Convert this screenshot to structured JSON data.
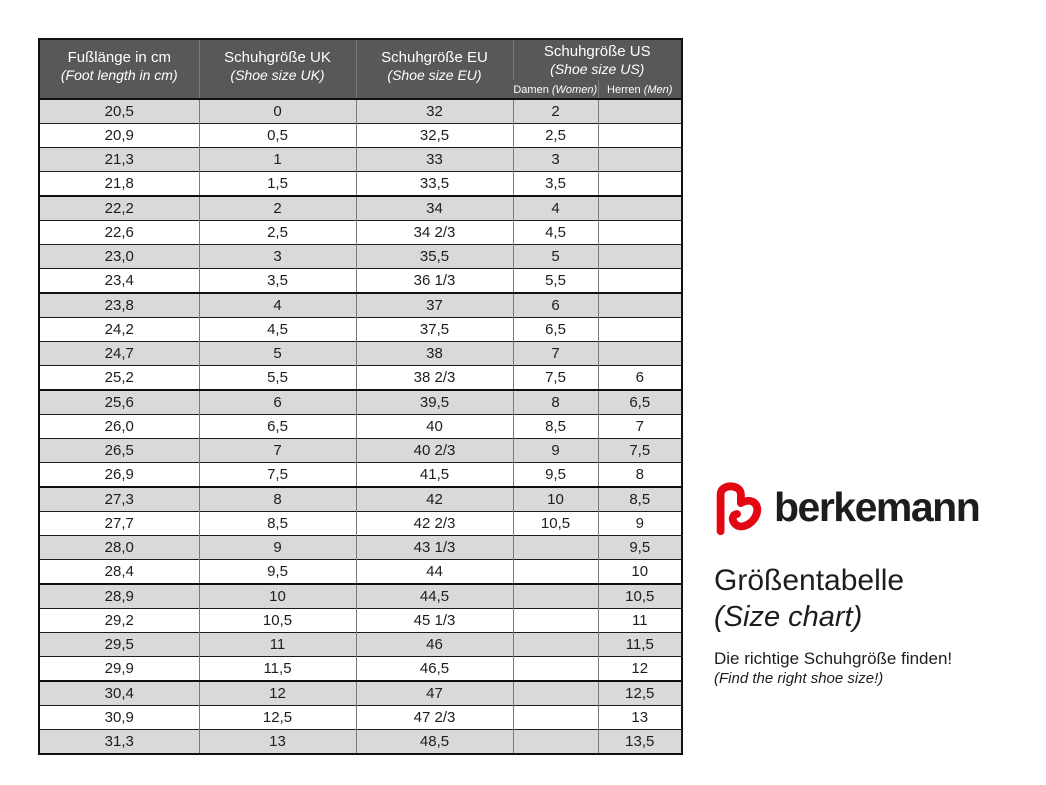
{
  "brand": {
    "logo_icon": "berkemann-b-mark",
    "logo_color": "#e30613",
    "name": "berkemann",
    "title_de": "Größentabelle",
    "title_en": "(Size chart)",
    "tagline_de": "Die richtige Schuhgröße finden!",
    "tagline_en": "(Find the right shoe size!)"
  },
  "colors": {
    "header_bg": "#58585a",
    "shaded_row_bg": "#d9d9d9",
    "border": "#121212",
    "logo_red": "#e30613",
    "text": "#1d1d1b"
  },
  "table": {
    "headers": [
      {
        "de": "Fußlänge in cm",
        "en": "(Foot length in cm)"
      },
      {
        "de": "Schuhgröße UK",
        "en": "(Shoe size UK)"
      },
      {
        "de": "Schuhgröße EU",
        "en": "(Shoe size EU)"
      },
      {
        "de": "Schuhgröße US",
        "en": "(Shoe size US)"
      }
    ],
    "us_subheaders": [
      {
        "de": "Damen",
        "en": "(Women)"
      },
      {
        "de": "Herren",
        "en": "(Men)"
      }
    ]
  },
  "chart_data": {
    "type": "table",
    "title": "Größentabelle (Size chart)",
    "columns": [
      "Fußlänge in cm (Foot length in cm)",
      "Schuhgröße UK (Shoe size UK)",
      "Schuhgröße EU (Shoe size EU)",
      "Schuhgröße US Damen (Women)",
      "Schuhgröße US Herren (Men)"
    ],
    "rows": [
      [
        "20,5",
        "0",
        "32",
        "2",
        ""
      ],
      [
        "20,9",
        "0,5",
        "32,5",
        "2,5",
        ""
      ],
      [
        "21,3",
        "1",
        "33",
        "3",
        ""
      ],
      [
        "21,8",
        "1,5",
        "33,5",
        "3,5",
        ""
      ],
      [
        "22,2",
        "2",
        "34",
        "4",
        ""
      ],
      [
        "22,6",
        "2,5",
        "34 2/3",
        "4,5",
        ""
      ],
      [
        "23,0",
        "3",
        "35,5",
        "5",
        ""
      ],
      [
        "23,4",
        "3,5",
        "36 1/3",
        "5,5",
        ""
      ],
      [
        "23,8",
        "4",
        "37",
        "6",
        ""
      ],
      [
        "24,2",
        "4,5",
        "37,5",
        "6,5",
        ""
      ],
      [
        "24,7",
        "5",
        "38",
        "7",
        ""
      ],
      [
        "25,2",
        "5,5",
        "38 2/3",
        "7,5",
        "6"
      ],
      [
        "25,6",
        "6",
        "39,5",
        "8",
        "6,5"
      ],
      [
        "26,0",
        "6,5",
        "40",
        "8,5",
        "7"
      ],
      [
        "26,5",
        "7",
        "40 2/3",
        "9",
        "7,5"
      ],
      [
        "26,9",
        "7,5",
        "41,5",
        "9,5",
        "8"
      ],
      [
        "27,3",
        "8",
        "42",
        "10",
        "8,5"
      ],
      [
        "27,7",
        "8,5",
        "42 2/3",
        "10,5",
        "9"
      ],
      [
        "28,0",
        "9",
        "43 1/3",
        "",
        "9,5"
      ],
      [
        "28,4",
        "9,5",
        "44",
        "",
        "10"
      ],
      [
        "28,9",
        "10",
        "44,5",
        "",
        "10,5"
      ],
      [
        "29,2",
        "10,5",
        "45 1/3",
        "",
        "11"
      ],
      [
        "29,5",
        "11",
        "46",
        "",
        "11,5"
      ],
      [
        "29,9",
        "11,5",
        "46,5",
        "",
        "12"
      ],
      [
        "30,4",
        "12",
        "47",
        "",
        "12,5"
      ],
      [
        "30,9",
        "12,5",
        "47 2/3",
        "",
        "13"
      ],
      [
        "31,3",
        "13",
        "48,5",
        "",
        "13,5"
      ]
    ]
  }
}
